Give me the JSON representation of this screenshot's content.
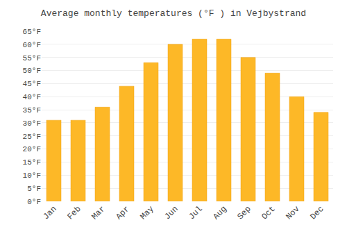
{
  "chart_data": {
    "type": "bar",
    "title": "Average monthly temperatures (°F ) in Vejbystrand",
    "categories": [
      "Jan",
      "Feb",
      "Mar",
      "Apr",
      "May",
      "Jun",
      "Jul",
      "Aug",
      "Sep",
      "Oct",
      "Nov",
      "Dec"
    ],
    "values": [
      31,
      31,
      36,
      44,
      53,
      60,
      62,
      62,
      55,
      49,
      40,
      34
    ],
    "color": "#FDB827",
    "ylim": [
      0,
      65
    ],
    "yticks": [
      {
        "value": 0,
        "label": "0°F"
      },
      {
        "value": 5,
        "label": "5°F"
      },
      {
        "value": 10,
        "label": "10°F"
      },
      {
        "value": 15,
        "label": "15°F"
      },
      {
        "value": 20,
        "label": "20°F"
      },
      {
        "value": 25,
        "label": "25°F"
      },
      {
        "value": 30,
        "label": "30°F"
      },
      {
        "value": 35,
        "label": "35°F"
      },
      {
        "value": 40,
        "label": "40°F"
      },
      {
        "value": 45,
        "label": "45°F"
      },
      {
        "value": 50,
        "label": "50°F"
      },
      {
        "value": 55,
        "label": "55°F"
      },
      {
        "value": 60,
        "label": "60°F"
      },
      {
        "value": 65,
        "label": "65°F"
      }
    ],
    "grid": true
  }
}
